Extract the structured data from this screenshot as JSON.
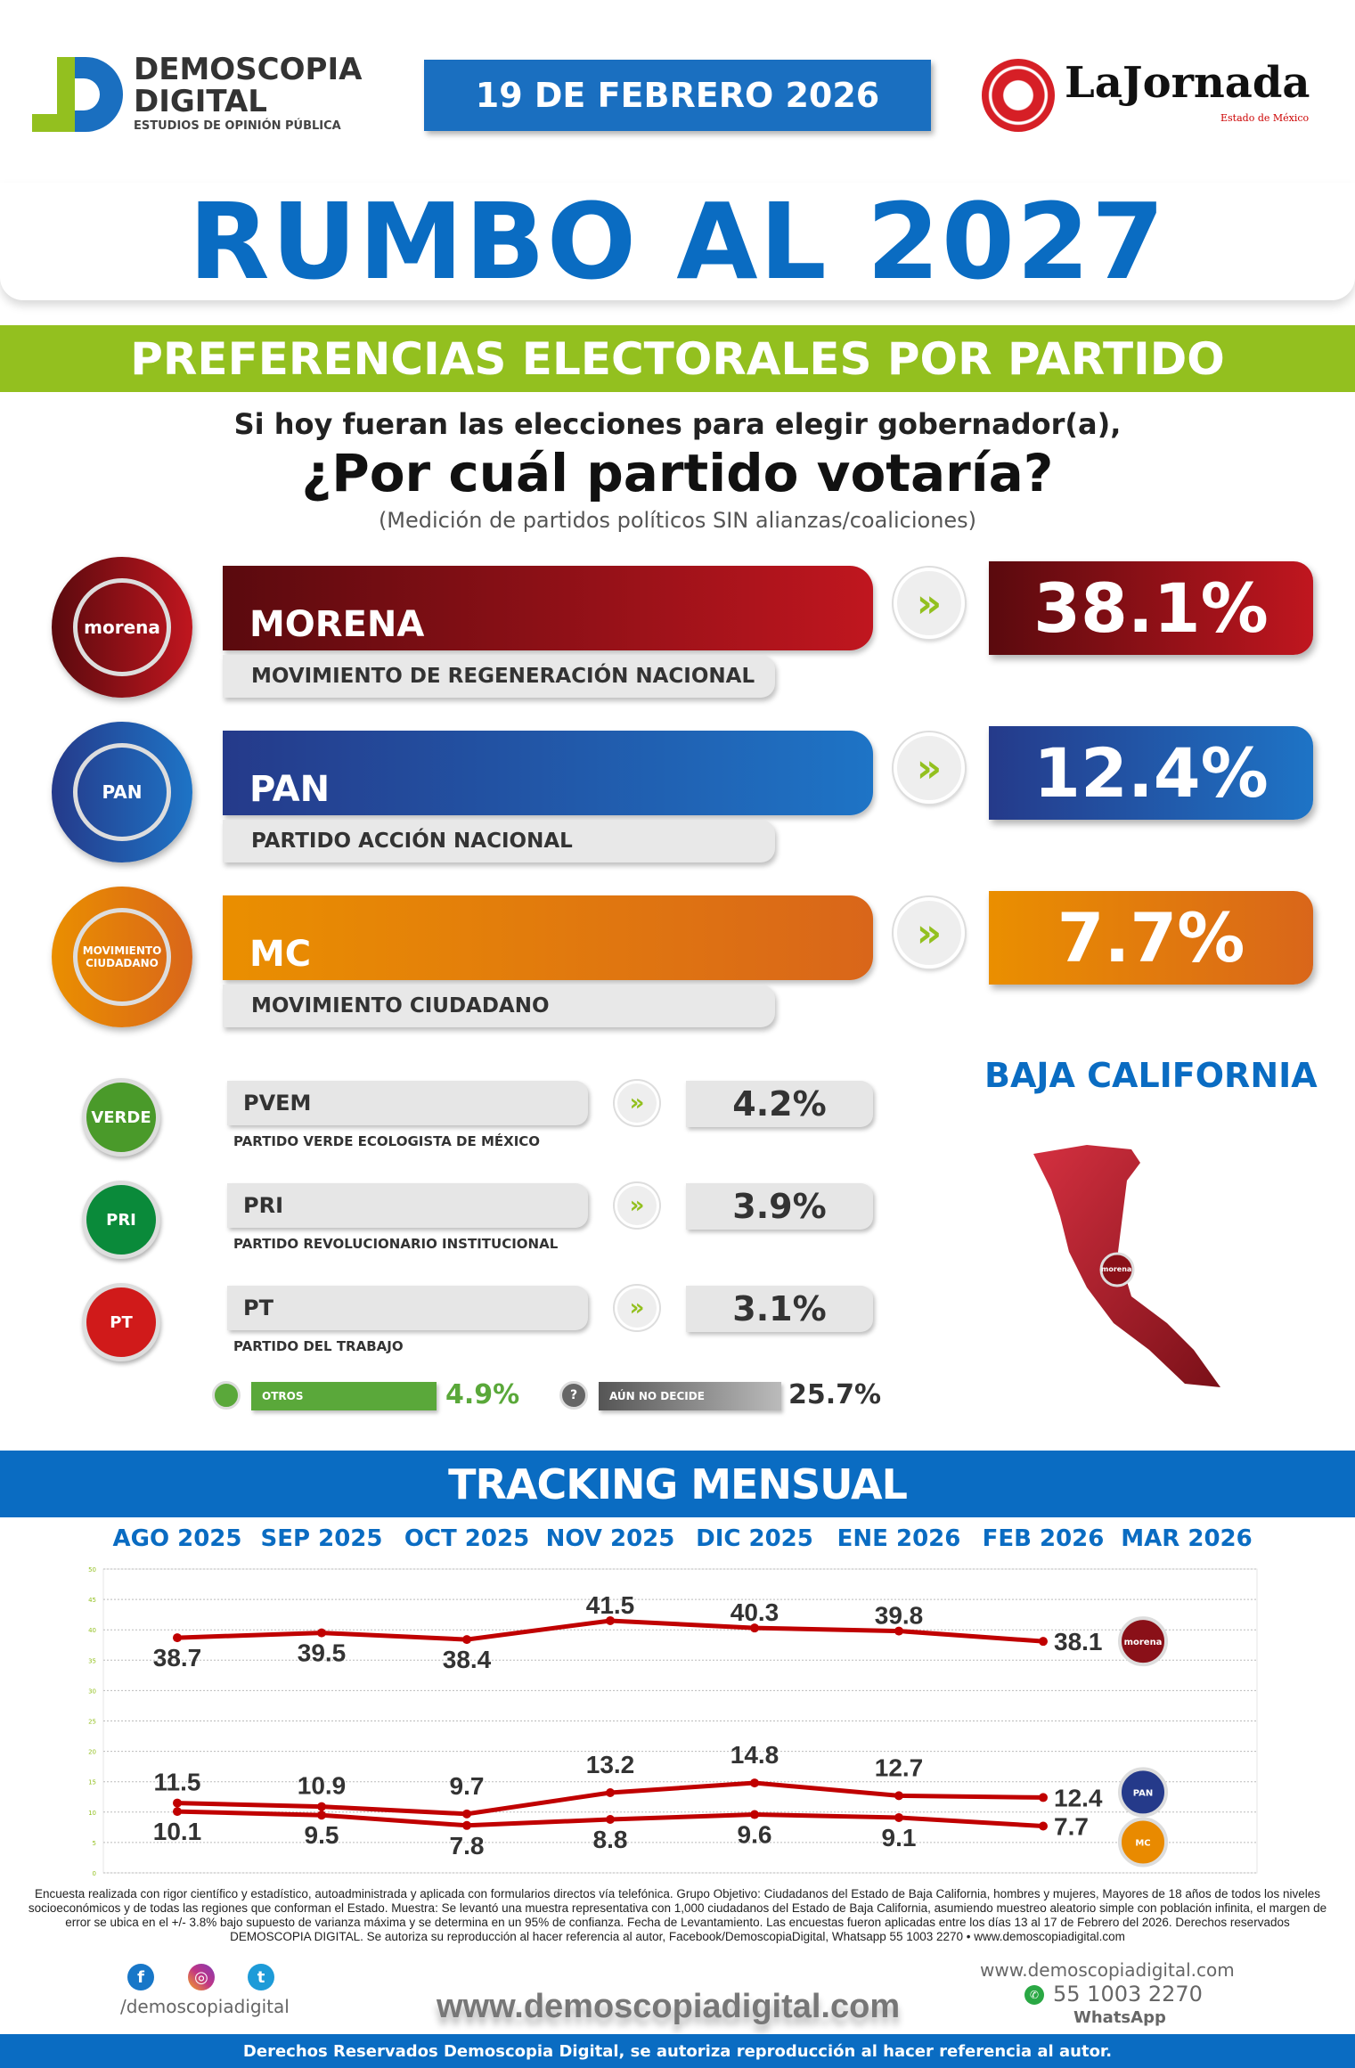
{
  "header": {
    "brand_line1": "DEMOSCOPIA",
    "brand_line2": "DIGITAL",
    "brand_tagline": "ESTUDIOS DE OPINIÓN PÚBLICA",
    "date": "19 DE FEBRERO 2026",
    "partner_logo": "LaJornada",
    "partner_sub": "Estado de México"
  },
  "title": "RUMBO AL 2027",
  "section_title": "PREFERENCIAS ELECTORALES POR PARTIDO",
  "question": {
    "line1": "Si hoy fueran las elecciones para elegir gobernador(a),",
    "line2": "¿Por cuál partido votaría?",
    "note": "(Medición de partidos políticos SIN alianzas/coaliciones)"
  },
  "main_parties": [
    {
      "logo": "morena",
      "short": "MORENA",
      "full": "MOVIMIENTO DE REGENERACIÓN NACIONAL",
      "pct": "38.1%",
      "color_from": "#5a0a0e",
      "color_to": "#c0161f"
    },
    {
      "logo": "PAN",
      "short": "PAN",
      "full": "PARTIDO ACCIÓN NACIONAL",
      "pct": "12.4%",
      "color_from": "#253a8a",
      "color_to": "#1e74c6"
    },
    {
      "logo": "MOVIMIENTO CIUDADANO",
      "short": "MC",
      "full": "MOVIMIENTO CIUDADANO",
      "pct": "7.7%",
      "color_from": "#ea8f00",
      "color_to": "#d9661a"
    }
  ],
  "minor_parties": [
    {
      "logo": "VERDE",
      "short": "PVEM",
      "full": "PARTIDO VERDE ECOLOGISTA DE MÉXICO",
      "pct": "4.2%",
      "color": "#4a9a2a"
    },
    {
      "logo": "PRI",
      "short": "PRI",
      "full": "PARTIDO REVOLUCIONARIO INSTITUCIONAL",
      "pct": "3.9%",
      "color": "#0a8a3a"
    },
    {
      "logo": "PT",
      "short": "PT",
      "full": "PARTIDO DEL TRABAJO",
      "pct": "3.1%",
      "color": "#d01a1a"
    }
  ],
  "others": {
    "label": "OTROS",
    "pct": "4.9%",
    "color": "#5aa83a"
  },
  "undecided": {
    "label": "AÚN NO DECIDE",
    "pct": "25.7%"
  },
  "state": "BAJA CALIFORNIA",
  "map_logo": "morena",
  "tracking_title": "TRACKING MENSUAL",
  "chart_data": {
    "type": "line",
    "categories": [
      "AGO 2025",
      "SEP 2025",
      "OCT 2025",
      "NOV 2025",
      "DIC 2025",
      "ENE 2026",
      "FEB 2026",
      "MAR 2026"
    ],
    "yticks": [
      "0",
      "5",
      "10",
      "15",
      "20",
      "25",
      "30",
      "35",
      "40",
      "45",
      "50"
    ],
    "ylim": [
      0,
      50
    ],
    "grid": true,
    "series": [
      {
        "logo": "morena",
        "values": [
          38.7,
          39.5,
          38.4,
          41.5,
          40.3,
          39.8,
          38.1,
          null
        ],
        "color": "#c00000"
      },
      {
        "logo": "PAN",
        "values": [
          11.5,
          10.9,
          9.7,
          13.2,
          14.8,
          12.7,
          12.4,
          null
        ],
        "color": "#c00000"
      },
      {
        "logo": "MC",
        "values": [
          10.1,
          9.5,
          7.8,
          8.8,
          9.6,
          9.1,
          7.7,
          null
        ],
        "color": "#c00000"
      }
    ]
  },
  "methodology": "Encuesta realizada con rigor científico y estadístico, autoadministrada y aplicada con formularios directos vía telefónica. Grupo Objetivo: Ciudadanos del Estado de Baja California, hombres y mujeres, Mayores de 18 años de todos los niveles socioeconómicos y de todas las regiones que conforman el Estado. Muestra: Se levantó una muestra representativa con 1,000 ciudadanos del Estado de Baja California, asumiendo muestreo aleatorio simple con población infinita, el margen de error se ubica en el +/- 3.8% bajo supuesto de varianza máxima y se determina en un 95% de confianza. Fecha de Levantamiento. Las encuestas fueron aplicadas entre los días 13 al 17 de Febrero del 2026. Derechos reservados DEMOSCOPIA DIGITAL. Se autoriza su reproducción al hacer referencia al autor, Facebook/DemoscopiaDigital, Whatsapp 55 1003 2270 • www.demoscopiadigital.com",
  "footer": {
    "social_handle": "/demoscopiadigital",
    "website_big": "www.demoscopiadigital.com",
    "website_small": "www.demoscopiadigital.com",
    "phone": "55 1003 2270",
    "whatsapp_label": "WhatsApp",
    "rights": "Derechos Reservados Demoscopia Digital, se autoriza reproducción al hacer referencia al autor."
  }
}
